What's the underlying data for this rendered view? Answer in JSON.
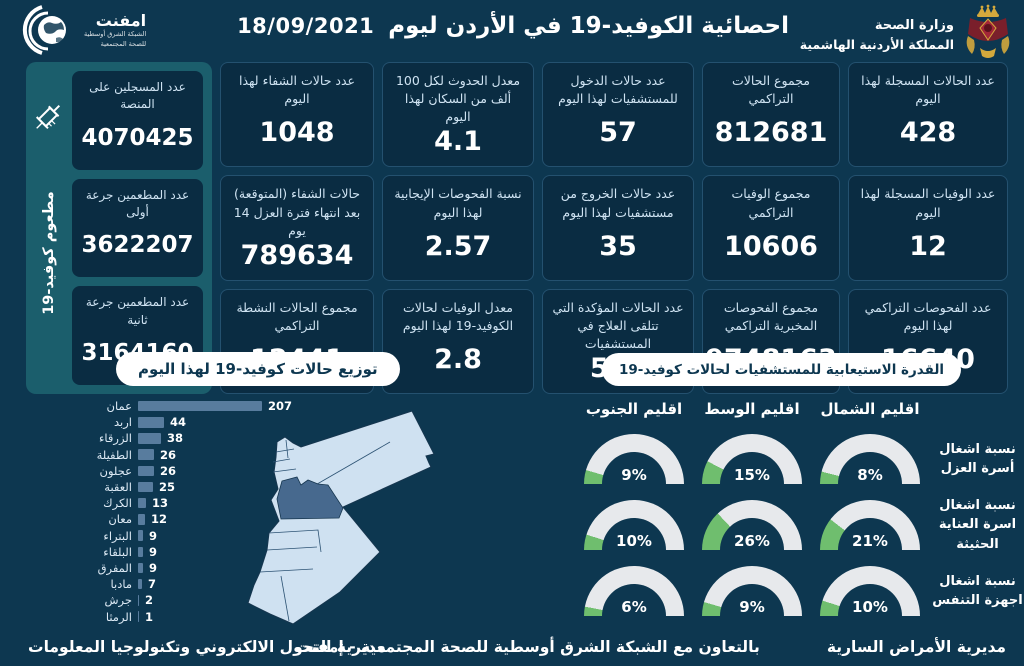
{
  "colors": {
    "background": "#0d3750",
    "card_bg": "#0a2c42",
    "card_border": "#24516f",
    "vax_panel": "#1b5e6c",
    "bar": "#587c9e",
    "map_light": "#cfe1f1",
    "map_highlight": "#47698e",
    "gauge_fill": "#6fbe6e",
    "gauge_track": "#e7e9ec",
    "badge_bg": "#ffffff",
    "badge_text": "#0d3750"
  },
  "header": {
    "title": "احصائية الكوفيد-19 في الأردن ليوم",
    "date": "18/09/2021",
    "emphnet_logo": {
      "name": "امفنت",
      "line1": "الشبكة الشرق أوسطية",
      "line2": "للصحة المجتمعية"
    },
    "ministry": {
      "line1": "وزارة الصحة",
      "line2": "المملكة الأردنية الهاشمية"
    }
  },
  "stats": [
    {
      "label": "عدد الحالات المسجلة لهذا اليوم",
      "value": "428"
    },
    {
      "label": "مجموع الحالات التراكمي",
      "value": "812681"
    },
    {
      "label": "عدد حالات الدخول للمستشفيات لهذا اليوم",
      "value": "57"
    },
    {
      "label": "معدل الحدوث لكل 100 ألف من السكان لهذا اليوم",
      "value": "4.1"
    },
    {
      "label": "عدد حالات الشفاء لهذا اليوم",
      "value": "1048"
    },
    {
      "label": "عدد الوفيات المسجلة لهذا اليوم",
      "value": "12"
    },
    {
      "label": "مجموع الوفيات التراكمي",
      "value": "10606"
    },
    {
      "label": "عدد حالات الخروج من مستشفيات لهذا اليوم",
      "value": "35"
    },
    {
      "label": "نسبة الفحوصات الإيجابية لهذا اليوم",
      "value": "2.57"
    },
    {
      "label": "حالات الشفاء (المتوقعة) بعد انتهاء فترة العزل 14 يوم",
      "value": "789634"
    },
    {
      "label": "عدد الفحوصات التراكمي لهذا اليوم",
      "value": "16640"
    },
    {
      "label": "مجموع الفحوصات المخبرية التراكمي",
      "value": "9748163"
    },
    {
      "label": "عدد الحالات المؤكدة التي تتلقى العلاج في المستشفيات",
      "value": "515"
    },
    {
      "label": "معدل الوفيات لحالات الكوفيد-19 لهذا اليوم",
      "value": "2.8"
    },
    {
      "label": "مجموع الحالات النشطة التراكمي",
      "value": "12441"
    }
  ],
  "vaccination": {
    "vertical_label": "مطعوم كوفيد-19",
    "cards": [
      {
        "label": "عدد المسجلين على المنصة",
        "value": "4070425"
      },
      {
        "label": "عدد المطعمين جرعة أولى",
        "value": "3622207"
      },
      {
        "label": "عدد المطعمين جرعة ثانية",
        "value": "3164160"
      }
    ]
  },
  "chart_data": [
    {
      "type": "bar",
      "orientation": "horizontal",
      "title": "توزيع حالات كوفيد-19 لهذا اليوم",
      "categories": [
        "عمان",
        "اربد",
        "الزرقاء",
        "الطفيلة",
        "عجلون",
        "العقبة",
        "الكرك",
        "معان",
        "البتراء",
        "البلقاء",
        "المفرق",
        "مادبا",
        "جرش",
        "الرمثا"
      ],
      "values": [
        207,
        44,
        38,
        26,
        26,
        25,
        13,
        12,
        9,
        9,
        9,
        7,
        2,
        1
      ],
      "xlim": [
        0,
        207
      ],
      "bar_color": "#587c9e",
      "value_labels": true
    },
    {
      "type": "gauge-grid",
      "title": "القدرة الاستيعابية للمستشفيات لحالات كوفيد-19",
      "columns": [
        "اقليم الشمال",
        "اقليم الوسط",
        "اقليم الجنوب"
      ],
      "rows": [
        "نسبة اشغال أسرة العزل",
        "نسبة اشغال اسرة العناية الحثيثة",
        "نسبة اشغال اجهزة التنفس"
      ],
      "values_pct": [
        [
          8,
          15,
          9
        ],
        [
          21,
          26,
          10
        ],
        [
          10,
          9,
          6
        ]
      ],
      "unit": "%",
      "fill_color": "#6fbe6e",
      "track_color": "#e7e9ec",
      "range": [
        0,
        100
      ]
    }
  ],
  "footer": {
    "left": "مديرية التحول الالكتروني وتكنولوجيا المعلومات",
    "center": "بالتعاون مع الشبكة الشرق أوسطية للصحة المجتمعية - إمفنت",
    "right": "مديرية الأمراض السارية"
  }
}
